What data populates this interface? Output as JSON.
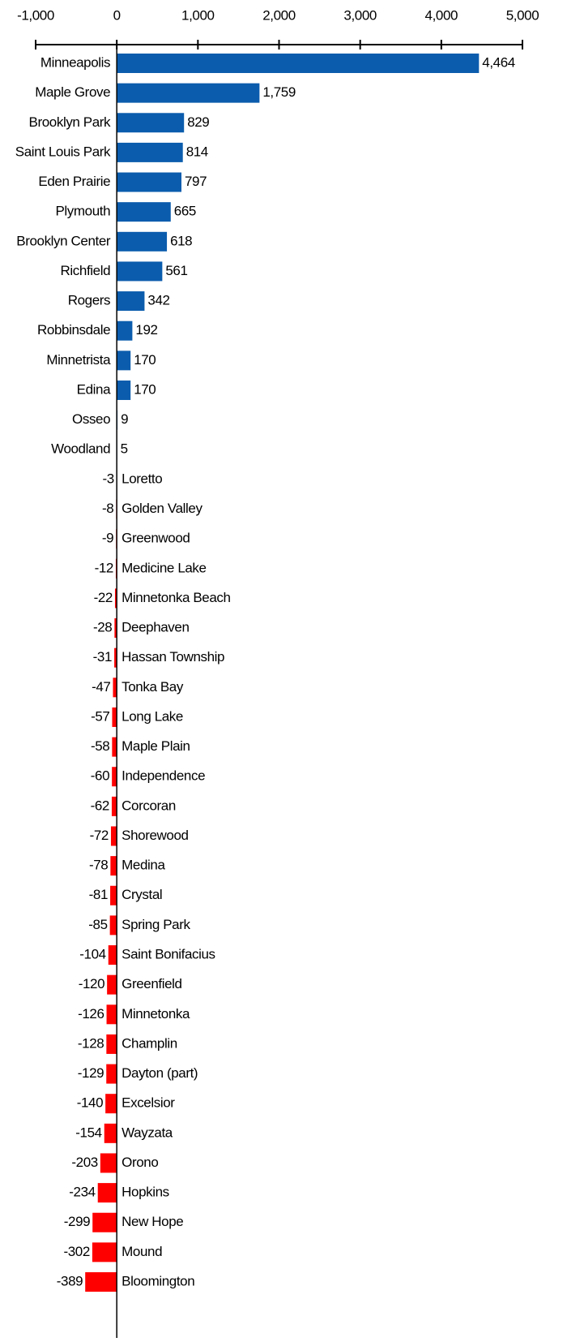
{
  "chart_data": {
    "type": "bar",
    "orientation": "horizontal",
    "categories": [
      "Minneapolis",
      "Maple Grove",
      "Brooklyn Park",
      "Saint Louis Park",
      "Eden Prairie",
      "Plymouth",
      "Brooklyn Center",
      "Richfield",
      "Rogers",
      "Robbinsdale",
      "Minnetrista",
      "Edina",
      "Osseo",
      "Woodland",
      "Loretto",
      "Golden Valley",
      "Greenwood",
      "Medicine Lake",
      "Minnetonka Beach",
      "Deephaven",
      "Hassan Township",
      "Tonka Bay",
      "Long Lake",
      "Maple Plain",
      "Independence",
      "Corcoran",
      "Shorewood",
      "Medina",
      "Crystal",
      "Spring Park",
      "Saint Bonifacius",
      "Greenfield",
      "Minnetonka",
      "Champlin",
      "Dayton (part)",
      "Excelsior",
      "Wayzata",
      "Orono",
      "Hopkins",
      "New Hope",
      "Mound",
      "Bloomington"
    ],
    "values": [
      4464,
      1759,
      829,
      814,
      797,
      665,
      618,
      561,
      342,
      192,
      170,
      170,
      9,
      5,
      -3,
      -8,
      -9,
      -12,
      -22,
      -28,
      -31,
      -47,
      -57,
      -58,
      -60,
      -62,
      -72,
      -78,
      -81,
      -85,
      -104,
      -120,
      -126,
      -128,
      -129,
      -140,
      -154,
      -203,
      -234,
      -299,
      -302,
      -389
    ],
    "value_labels": [
      "4,464",
      "1,759",
      "829",
      "814",
      "797",
      "665",
      "618",
      "561",
      "342",
      "192",
      "170",
      "170",
      "9",
      "5",
      "-3",
      "-8",
      "-9",
      "-12",
      "-22",
      "-28",
      "-31",
      "-47",
      "-57",
      "-58",
      "-60",
      "-62",
      "-72",
      "-78",
      "-81",
      "-85",
      "-104",
      "-120",
      "-126",
      "-128",
      "-129",
      "-140",
      "-154",
      "-203",
      "-234",
      "-299",
      "-302",
      "-389"
    ],
    "color": "#0b5cad",
    "negative_color": "#ff0000",
    "xlim": [
      -1000,
      5000
    ],
    "xticks": [
      {
        "value": -1000,
        "label": "-1,000"
      },
      0,
      {
        "value": 1000,
        "label": "1,000"
      },
      {
        "value": 2000,
        "label": "2,000"
      },
      {
        "value": 3000,
        "label": "3,000"
      },
      {
        "value": 4000,
        "label": "4,000"
      },
      {
        "value": 5000,
        "label": "5,000"
      }
    ]
  }
}
